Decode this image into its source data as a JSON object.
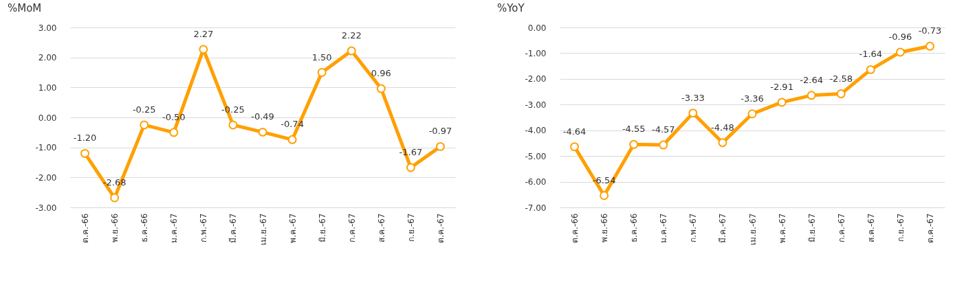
{
  "chart_data": [
    {
      "type": "line",
      "title": "%MoM",
      "categories": [
        "ต.ค.-66",
        "พ.ย.-66",
        "ธ.ค.-66",
        "ม.ค.-67",
        "ก.พ.-67",
        "มี.ค.-67",
        "เม.ย.-67",
        "พ.ค.-67",
        "มิ.ย.-67",
        "ก.ค.-67",
        "ส.ค.-67",
        "ก.ย.-67",
        "ต.ค.-67"
      ],
      "series": [
        {
          "color": "#ffa000",
          "values": [
            -1.2,
            -2.68,
            -0.25,
            -0.5,
            2.27,
            -0.25,
            -0.49,
            -0.74,
            1.5,
            2.22,
            0.96,
            -1.67,
            -0.97
          ],
          "value_labels": [
            "-1.20",
            "-2.68",
            "-0.25",
            "-0.50",
            "2.27",
            "-0.25",
            "-0.49",
            "-0.74",
            "1.50",
            "2.22",
            "0.96",
            "-1.67",
            "-0.97"
          ]
        }
      ],
      "ylim": [
        -3,
        3
      ],
      "yticks": [
        {
          "value": -3,
          "label": "-3.00"
        },
        {
          "value": -2,
          "label": "-2.00"
        },
        {
          "value": -1,
          "label": "-1.00"
        },
        {
          "value": 0,
          "label": "0.00"
        },
        {
          "value": 1,
          "label": "1.00"
        },
        {
          "value": 2,
          "label": "2.00"
        },
        {
          "value": 3,
          "label": "3.00"
        }
      ],
      "grid": "y",
      "marker": "circle"
    },
    {
      "type": "line",
      "title": "%YoY",
      "categories": [
        "ต.ค.-66",
        "พ.ย.-66",
        "ธ.ค.-66",
        "ม.ค.-67",
        "ก.พ.-67",
        "มี.ค.-67",
        "เม.ย.-67",
        "พ.ค.-67",
        "มิ.ย.-67",
        "ก.ค.-67",
        "ส.ค.-67",
        "ก.ย.-67",
        "ต.ค.-67"
      ],
      "series": [
        {
          "color": "#ffa000",
          "values": [
            -4.64,
            -6.54,
            -4.55,
            -4.57,
            -3.33,
            -4.48,
            -3.36,
            -2.91,
            -2.64,
            -2.58,
            -1.64,
            -0.96,
            -0.73
          ],
          "value_labels": [
            "-4.64",
            "-6.54",
            "-4.55",
            "-4.57",
            "-3.33",
            "-4.48",
            "-3.36",
            "-2.91",
            "-2.64",
            "-2.58",
            "-1.64",
            "-0.96",
            "-0.73"
          ]
        }
      ],
      "ylim": [
        -7,
        0
      ],
      "yticks": [
        {
          "value": -7,
          "label": "-7.00"
        },
        {
          "value": -6,
          "label": "-6.00"
        },
        {
          "value": -5,
          "label": "-5.00"
        },
        {
          "value": -4,
          "label": "-4.00"
        },
        {
          "value": -3,
          "label": "-3.00"
        },
        {
          "value": -2,
          "label": "-2.00"
        },
        {
          "value": -1,
          "label": "-1.00"
        },
        {
          "value": 0,
          "label": "0.00"
        }
      ],
      "grid": "y",
      "marker": "circle"
    }
  ]
}
